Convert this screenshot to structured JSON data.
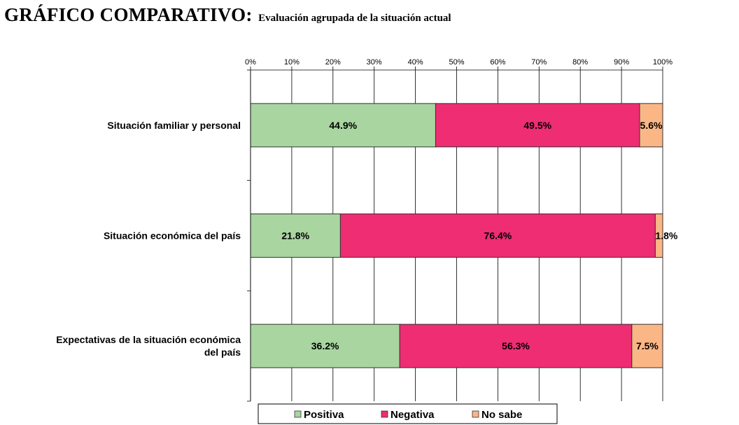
{
  "header": {
    "title": "GRÁFICO COMPARATIVO:",
    "subtitle": "Evaluación agrupada de la situación actual"
  },
  "chart_data": {
    "type": "bar",
    "orientation": "horizontal",
    "stacked": "percent",
    "categories": [
      [
        "Situación  familiar y personal"
      ],
      [
        "Situación económica del país"
      ],
      [
        "Expectativas de la situación económica",
        "del país"
      ]
    ],
    "series": [
      {
        "name": "Positiva",
        "color": "#a8d5a0",
        "values": [
          44.9,
          21.8,
          36.2
        ],
        "labels": [
          "44.9%",
          "21.8%",
          "36.2%"
        ]
      },
      {
        "name": "Negativa",
        "color": "#ee2d73",
        "values": [
          49.5,
          76.4,
          56.3
        ],
        "labels": [
          "49.5%",
          "76.4%",
          "56.3%"
        ]
      },
      {
        "name": "No sabe",
        "color": "#fbb686",
        "values": [
          5.6,
          1.8,
          7.5
        ],
        "labels": [
          "5.6%",
          "1.8%",
          "7.5%"
        ]
      }
    ],
    "xlim": [
      0,
      100
    ],
    "x_ticks": [
      "0%",
      "10%",
      "20%",
      "30%",
      "40%",
      "50%",
      "60%",
      "70%",
      "80%",
      "90%",
      "100%"
    ],
    "x_axis_position": "top",
    "grid": true,
    "legend_position": "bottom"
  }
}
